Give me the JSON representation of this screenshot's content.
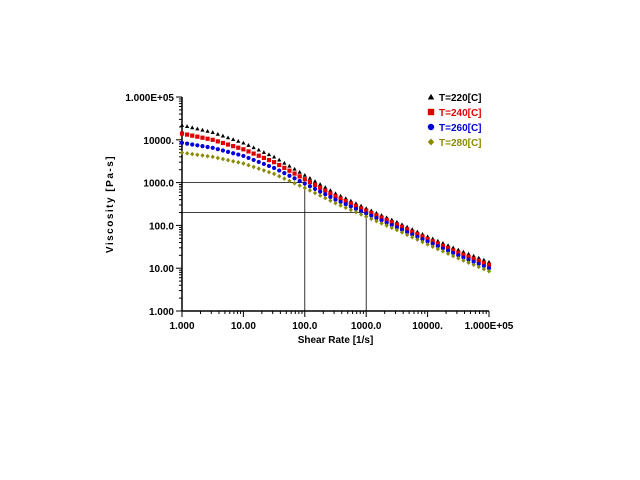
{
  "chart_data": {
    "type": "scatter",
    "title": "",
    "xlabel": "Shear Rate [1/s]",
    "ylabel": "Viscosity [Pa-s]",
    "x_scale": "log",
    "y_scale": "log",
    "xlim": [
      1,
      100000
    ],
    "ylim": [
      1,
      100000
    ],
    "x_ticks": [
      1,
      10,
      100,
      1000,
      10000,
      100000
    ],
    "x_tick_labels": [
      "1.000",
      "10.00",
      "100.0",
      "1000.0",
      "10000.",
      "1.000E+05"
    ],
    "y_ticks": [
      1,
      10,
      100,
      1000,
      10000,
      100000
    ],
    "y_tick_labels": [
      "1.000",
      "10.00",
      "100.0",
      "1000.0",
      "10000.",
      "1.000E+05"
    ],
    "grid": false,
    "legend_position": "top-right",
    "reference_lines": [
      {
        "x": 100,
        "y": 1000
      },
      {
        "x": 1000,
        "y": 200
      }
    ],
    "series": [
      {
        "name": "T=220[C]",
        "color": "#000000",
        "marker": "triangle",
        "x": [
          1,
          3.16,
          10,
          31.6,
          100,
          316,
          1000,
          3160,
          10000,
          31600,
          100000
        ],
        "y": [
          22000,
          15000,
          8500,
          4000,
          1500,
          560,
          250,
          120,
          55,
          27,
          14
        ]
      },
      {
        "name": "T=240[C]",
        "color": "#e00000",
        "marker": "square",
        "x": [
          1,
          3.16,
          10,
          31.6,
          100,
          316,
          1000,
          3160,
          10000,
          31600,
          100000
        ],
        "y": [
          14000,
          10000,
          6000,
          3000,
          1200,
          480,
          220,
          105,
          48,
          23,
          12
        ]
      },
      {
        "name": "T=260[C]",
        "color": "#0000dd",
        "marker": "circle",
        "x": [
          1,
          3.16,
          10,
          31.6,
          100,
          316,
          1000,
          3160,
          10000,
          31600,
          100000
        ],
        "y": [
          8500,
          6500,
          4200,
          2200,
          950,
          400,
          190,
          90,
          42,
          20,
          10
        ]
      },
      {
        "name": "T=280[C]",
        "color": "#8a8a00",
        "marker": "diamond",
        "x": [
          1,
          3.16,
          10,
          31.6,
          100,
          316,
          1000,
          3160,
          10000,
          31600,
          100000
        ],
        "y": [
          5000,
          4000,
          2800,
          1600,
          750,
          330,
          160,
          78,
          36,
          17,
          8.5
        ]
      }
    ]
  }
}
